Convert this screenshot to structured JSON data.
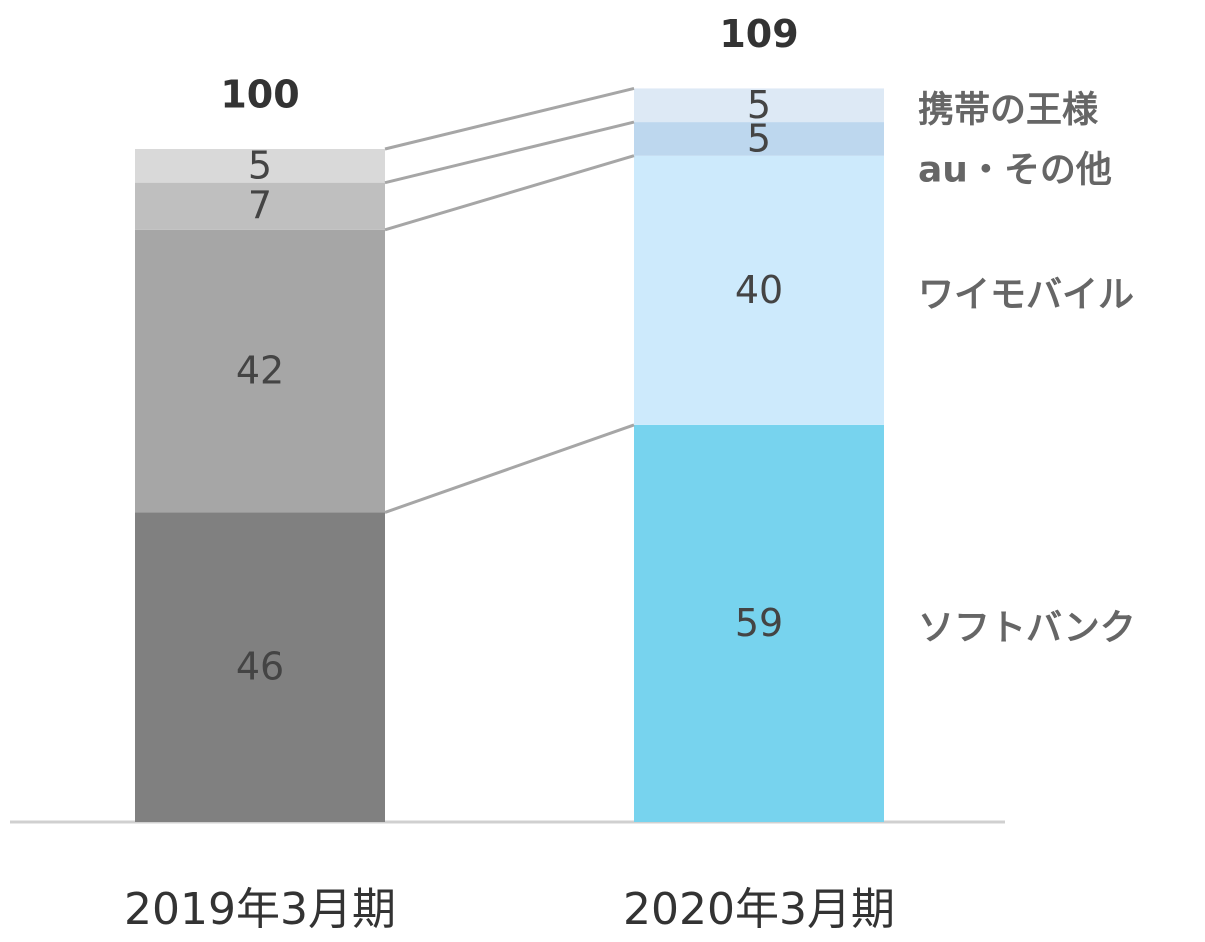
{
  "chart_data": {
    "type": "stacked-bar",
    "categories": [
      "2019年3月期",
      "2020年3月期"
    ],
    "totals": [
      100,
      109
    ],
    "series": [
      {
        "name": "ソフトバンク",
        "colors": [
          "#808080",
          "#77d3ee"
        ],
        "values": [
          46,
          59
        ]
      },
      {
        "name": "ワイモバイル",
        "colors": [
          "#a6a6a6",
          "#cdeafc"
        ],
        "values": [
          42,
          40
        ]
      },
      {
        "name": "au・その他",
        "colors": [
          "#bfbfbf",
          "#bdd7ee"
        ],
        "values": [
          7,
          5
        ]
      },
      {
        "name": "携帯の王様",
        "colors": [
          "#d9d9d9",
          "#dde9f5"
        ],
        "values": [
          5,
          5
        ]
      }
    ]
  }
}
